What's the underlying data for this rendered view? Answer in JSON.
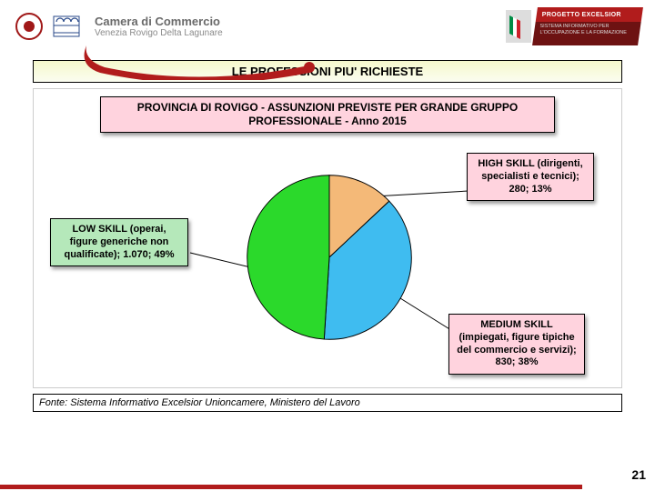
{
  "colors": {
    "brand_red": "#b11c1c",
    "brand_dark": "#6d1212",
    "gray_text": "#6a6a6a",
    "gray_sub": "#8a8a8a",
    "title_bg1": "#f5f8cc",
    "title_bg2": "#fbfdf0"
  },
  "header": {
    "org_line1": "Camera di Commercio",
    "org_line2": "Venezia Rovigo Delta Lagunare",
    "excelsior_top": "PROGETTO EXCELSIOR",
    "excelsior_sub": "SISTEMA INFORMATIVO PER L'OCCUPAZIONE E LA FORMAZIONE"
  },
  "title": "LE PROFESSIONI PIU' RICHIESTE",
  "chart": {
    "type": "pie",
    "title": "PROVINCIA DI ROVIGO - ASSUNZIONI PREVISTE PER GRANDE GRUPPO PROFESSIONALE - Anno 2015",
    "title_bg": "#ffd3de",
    "slices": [
      {
        "key": "high",
        "label": "HIGH SKILL (dirigenti, specialisti e tecnici); 280; 13%",
        "value": 280,
        "percent": 13,
        "color": "#f4b978",
        "callout_bg": "#ffd3de"
      },
      {
        "key": "medium",
        "label": "MEDIUM SKILL (impiegati, figure tipiche del commercio e servizi); 830; 38%",
        "value": 830,
        "percent": 38,
        "color": "#3fbcf0",
        "callout_bg": "#ffd3de"
      },
      {
        "key": "low",
        "label": "LOW SKILL (operai, figure generiche non qualificate); 1.070; 49%",
        "value": 1070,
        "percent": 49,
        "color": "#2bd92b",
        "callout_bg": "#b5e8ba"
      }
    ],
    "stroke": "#000000",
    "stroke_width": 1
  },
  "source": "Fonte: Sistema Informativo Excelsior Unioncamere, Ministero del Lavoro",
  "page_number": "21",
  "flag": {
    "green": "#008c45",
    "white": "#ffffff",
    "red": "#cd212a"
  }
}
